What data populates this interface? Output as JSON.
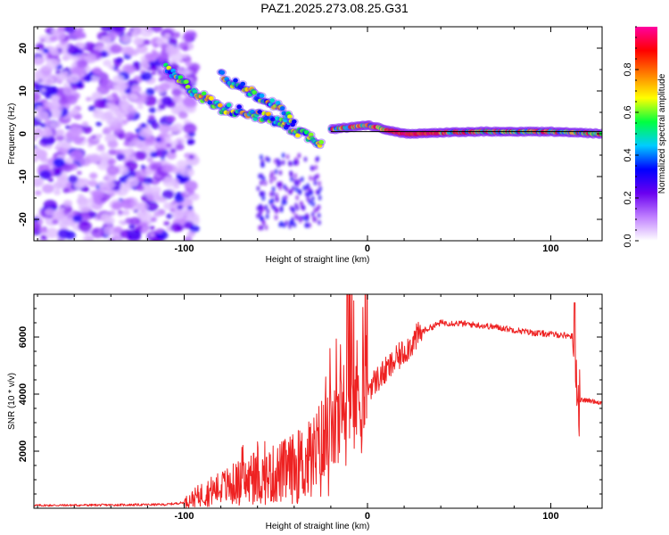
{
  "title": "PAZ1.2025.273.08.25.G31",
  "chart_data": [
    {
      "type": "heatmap",
      "xlabel": "Height of straight line (km)",
      "ylabel": "Frequency (Hz)",
      "xlim": [
        -182,
        128
      ],
      "ylim": [
        -25,
        25
      ],
      "xticks": [
        -100,
        0,
        100
      ],
      "xtick_labels": [
        "-100",
        "0",
        "100"
      ],
      "yticks": [
        -20,
        -10,
        0,
        10,
        20
      ],
      "ytick_labels": [
        "-20",
        "-10",
        "0",
        "10",
        "20"
      ],
      "colorbar": {
        "label": "Normalized spectral amplitude",
        "range": [
          0,
          1
        ],
        "ticks": [
          0.0,
          0.2,
          0.4,
          0.6,
          0.8
        ],
        "tick_labels": [
          "0.0",
          "0.2",
          "0.4",
          "0.6",
          "0.8"
        ],
        "colors": [
          "#ffffff",
          "#c080ff",
          "#6a00f0",
          "#0000ff",
          "#00ccff",
          "#00ff40",
          "#ffff00",
          "#ff8000",
          "#ff0000",
          "#ff00a0"
        ]
      },
      "noise_region_km": [
        -182,
        -98
      ],
      "ridges": [
        {
          "name": "main-descending",
          "x": [
            -110,
            -95,
            -80,
            -65,
            -50,
            -40,
            -30,
            -25
          ],
          "y": [
            15,
            10,
            6,
            5,
            3,
            1,
            -1,
            -2
          ]
        },
        {
          "name": "upper-branch",
          "x": [
            -80,
            -70,
            -60,
            -50,
            -45,
            -40
          ],
          "y": [
            14,
            11,
            9,
            7,
            4,
            3
          ]
        },
        {
          "name": "carrier",
          "x": [
            -20,
            -10,
            0,
            20,
            60,
            100,
            128
          ],
          "y": [
            1,
            1.5,
            2,
            0,
            0.5,
            0.5,
            0
          ]
        }
      ],
      "carrier_peak_amplitude": 0.95
    },
    {
      "type": "line",
      "xlabel": "Height of straight line (km)",
      "ylabel": "SNR (10 * v/v)",
      "xlim": [
        -182,
        128
      ],
      "ylim": [
        0,
        7500
      ],
      "xticks": [
        -100,
        0,
        100
      ],
      "xtick_labels": [
        "-100",
        "0",
        "100"
      ],
      "yticks": [
        2000,
        4000,
        6000
      ],
      "ytick_labels": [
        "2000",
        "4000",
        "6000"
      ],
      "line_color": "#ee2222",
      "series": [
        {
          "name": "SNR",
          "x": [
            -182,
            -150,
            -110,
            -100,
            -90,
            -80,
            -70,
            -60,
            -50,
            -40,
            -30,
            -20,
            -15,
            -10,
            -5,
            0,
            10,
            20,
            30,
            40,
            50,
            60,
            70,
            80,
            90,
            100,
            110,
            113,
            115,
            120,
            128
          ],
          "y": [
            100,
            110,
            130,
            200,
            500,
            700,
            900,
            1000,
            1200,
            1400,
            1700,
            2500,
            3000,
            3500,
            4000,
            4200,
            4800,
            5500,
            6200,
            6500,
            6480,
            6420,
            6350,
            6250,
            6150,
            6100,
            6050,
            6000,
            3800,
            3780,
            3700
          ]
        }
      ]
    }
  ]
}
